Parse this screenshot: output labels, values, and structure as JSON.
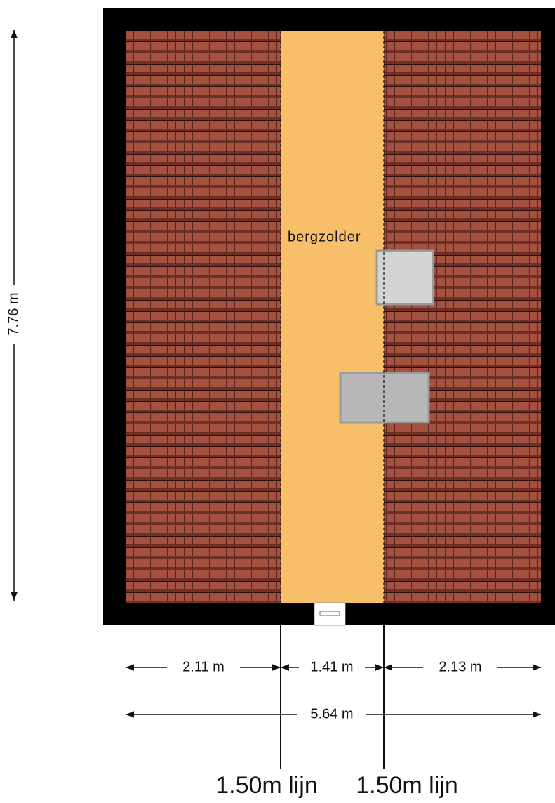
{
  "room": {
    "label": "bergzolder"
  },
  "dimensions": {
    "height": "7.76 m",
    "left": "2.11 m",
    "middle": "1.41 m",
    "right": "2.13 m",
    "total": "5.64 m"
  },
  "lines": [
    {
      "label": "1.50m lijn"
    },
    {
      "label": "1.50m lijn"
    }
  ]
}
